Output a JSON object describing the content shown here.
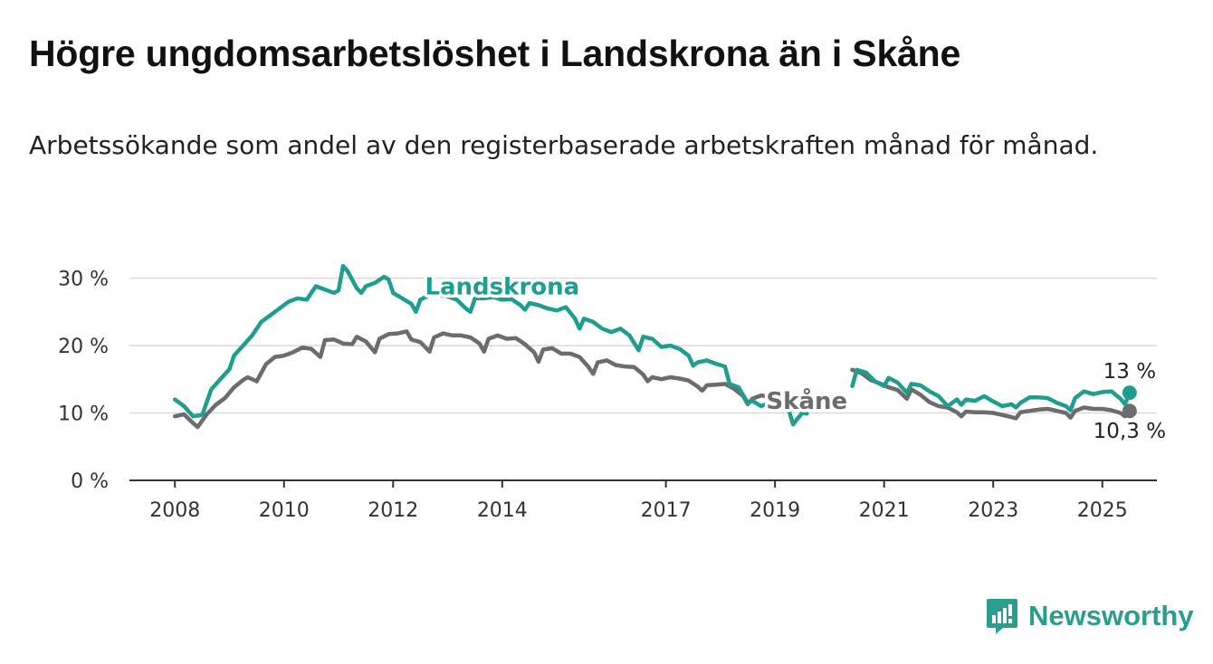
{
  "title": "Högre ungdomsarbetslöshet i Landskrona än i Skåne",
  "subtitle": "Arbetssökande som andel av den registerbaserade arbetskraften månad för månad.",
  "brand": {
    "name": "Newsworthy",
    "icon": "bar-chart-bubble-icon",
    "color": "#2a9d8f"
  },
  "chart_data": {
    "type": "line",
    "ylim": [
      0,
      31
    ],
    "xlim": [
      "2007-03",
      "2026-01"
    ],
    "y_ticks": [
      {
        "value": 0,
        "label": "0 %"
      },
      {
        "value": 10,
        "label": "10 %"
      },
      {
        "value": 20,
        "label": "20 %"
      },
      {
        "value": 30,
        "label": "30 %"
      }
    ],
    "x_ticks": [
      {
        "date": "2008-01",
        "label": "2008"
      },
      {
        "date": "2010-01",
        "label": "2010"
      },
      {
        "date": "2012-01",
        "label": "2012"
      },
      {
        "date": "2014-01",
        "label": "2014"
      },
      {
        "date": "2017-01",
        "label": "2017"
      },
      {
        "date": "2019-01",
        "label": "2019"
      },
      {
        "date": "2021-01",
        "label": "2021"
      },
      {
        "date": "2023-01",
        "label": "2023"
      },
      {
        "date": "2025-01",
        "label": "2025"
      }
    ],
    "grid": true,
    "series": [
      {
        "name": "Skåne",
        "color": "#6b6b70",
        "end_label": "10,3 %",
        "points": [
          [
            "2008-01",
            9.5
          ],
          [
            "2008-03",
            9.8
          ],
          [
            "2008-05",
            8.5
          ],
          [
            "2008-06",
            7.9
          ],
          [
            "2008-08",
            9.8
          ],
          [
            "2008-10",
            11.2
          ],
          [
            "2008-12",
            12.2
          ],
          [
            "2009-02",
            13.8
          ],
          [
            "2009-04",
            14.9
          ],
          [
            "2009-05",
            15.3
          ],
          [
            "2009-07",
            14.7
          ],
          [
            "2009-09",
            17.2
          ],
          [
            "2009-11",
            18.3
          ],
          [
            "2010-01",
            18.5
          ],
          [
            "2010-03",
            19
          ],
          [
            "2010-05",
            19.7
          ],
          [
            "2010-07",
            19.5
          ],
          [
            "2010-09",
            18.3
          ],
          [
            "2010-10",
            20.8
          ],
          [
            "2010-12",
            20.9
          ],
          [
            "2011-02",
            20.3
          ],
          [
            "2011-04",
            20.2
          ],
          [
            "2011-05",
            21.3
          ],
          [
            "2011-07",
            20.6
          ],
          [
            "2011-09",
            19
          ],
          [
            "2011-10",
            21
          ],
          [
            "2011-12",
            21.7
          ],
          [
            "2012-02",
            21.8
          ],
          [
            "2012-04",
            22.1
          ],
          [
            "2012-05",
            20.9
          ],
          [
            "2012-07",
            20.5
          ],
          [
            "2012-09",
            19.1
          ],
          [
            "2012-10",
            21.2
          ],
          [
            "2012-12",
            21.8
          ],
          [
            "2013-02",
            21.5
          ],
          [
            "2013-04",
            21.5
          ],
          [
            "2013-06",
            21.2
          ],
          [
            "2013-08",
            20.3
          ],
          [
            "2013-09",
            19.1
          ],
          [
            "2013-10",
            21
          ],
          [
            "2013-12",
            21.5
          ],
          [
            "2014-02",
            21
          ],
          [
            "2014-04",
            21.1
          ],
          [
            "2014-06",
            20.2
          ],
          [
            "2014-08",
            19
          ],
          [
            "2014-09",
            17.6
          ],
          [
            "2014-10",
            19.4
          ],
          [
            "2014-12",
            19.6
          ],
          [
            "2015-02",
            18.8
          ],
          [
            "2015-04",
            18.8
          ],
          [
            "2015-06",
            18.3
          ],
          [
            "2015-08",
            16.8
          ],
          [
            "2015-09",
            15.8
          ],
          [
            "2015-10",
            17.5
          ],
          [
            "2015-12",
            17.8
          ],
          [
            "2016-02",
            17.1
          ],
          [
            "2016-04",
            16.9
          ],
          [
            "2016-06",
            16.8
          ],
          [
            "2016-08",
            15.7
          ],
          [
            "2016-09",
            14.7
          ],
          [
            "2016-10",
            15.3
          ],
          [
            "2016-12",
            15
          ],
          [
            "2017-02",
            15.3
          ],
          [
            "2017-04",
            15.1
          ],
          [
            "2017-06",
            14.8
          ],
          [
            "2017-08",
            13.9
          ],
          [
            "2017-09",
            13.3
          ],
          [
            "2017-10",
            14.1
          ],
          [
            "2017-12",
            14.2
          ],
          [
            "2018-02",
            14.3
          ],
          [
            "2018-04",
            13.6
          ],
          [
            "2018-06",
            12.5
          ],
          [
            "2018-07",
            11.3
          ],
          [
            "2018-08",
            12.1
          ],
          [
            "2018-10",
            12.6
          ],
          [
            "2018-12",
            12.3
          ],
          [
            "2020-06",
            16.4
          ],
          [
            "2020-08",
            15.9
          ],
          [
            "2020-10",
            14.9
          ],
          [
            "2020-12",
            14.4
          ],
          [
            "2021-02",
            13.8
          ],
          [
            "2021-04",
            13.4
          ],
          [
            "2021-06",
            12.1
          ],
          [
            "2021-07",
            13.5
          ],
          [
            "2021-09",
            12.7
          ],
          [
            "2021-11",
            11.6
          ],
          [
            "2022-01",
            11
          ],
          [
            "2022-03",
            10.8
          ],
          [
            "2022-05",
            10.1
          ],
          [
            "2022-06",
            9.5
          ],
          [
            "2022-07",
            10.2
          ],
          [
            "2022-09",
            10.1
          ],
          [
            "2022-11",
            10.1
          ],
          [
            "2023-01",
            10
          ],
          [
            "2023-03",
            9.7
          ],
          [
            "2023-05",
            9.4
          ],
          [
            "2023-06",
            9.2
          ],
          [
            "2023-07",
            10.1
          ],
          [
            "2023-09",
            10.3
          ],
          [
            "2023-11",
            10.5
          ],
          [
            "2024-01",
            10.6
          ],
          [
            "2024-03",
            10.3
          ],
          [
            "2024-05",
            10
          ],
          [
            "2024-06",
            9.3
          ],
          [
            "2024-07",
            10.3
          ],
          [
            "2024-09",
            10.8
          ],
          [
            "2024-11",
            10.6
          ],
          [
            "2025-01",
            10.6
          ],
          [
            "2025-03",
            10.4
          ],
          [
            "2025-05",
            10
          ],
          [
            "2025-06",
            9.5
          ],
          [
            "2025-07",
            10.3
          ]
        ]
      },
      {
        "name": "Landskrona",
        "color": "#1f9e8f",
        "end_label": "13 %",
        "points": [
          [
            "2008-01",
            12
          ],
          [
            "2008-03",
            11
          ],
          [
            "2008-05",
            9.5
          ],
          [
            "2008-07",
            9.7
          ],
          [
            "2008-09",
            13.5
          ],
          [
            "2008-11",
            15
          ],
          [
            "2009-01",
            16.5
          ],
          [
            "2009-02",
            18.5
          ],
          [
            "2009-04",
            20
          ],
          [
            "2009-06",
            21.5
          ],
          [
            "2009-08",
            23.5
          ],
          [
            "2009-10",
            24.5
          ],
          [
            "2009-12",
            25.5
          ],
          [
            "2010-02",
            26.5
          ],
          [
            "2010-04",
            27
          ],
          [
            "2010-06",
            26.8
          ],
          [
            "2010-08",
            28.8
          ],
          [
            "2010-10",
            28.3
          ],
          [
            "2010-12",
            27.8
          ],
          [
            "2011-01",
            28.2
          ],
          [
            "2011-02",
            31.8
          ],
          [
            "2011-03",
            31
          ],
          [
            "2011-05",
            28.5
          ],
          [
            "2011-06",
            27.8
          ],
          [
            "2011-07",
            28.8
          ],
          [
            "2011-09",
            29.3
          ],
          [
            "2011-11",
            30.2
          ],
          [
            "2011-12",
            29.8
          ],
          [
            "2012-01",
            27.8
          ],
          [
            "2012-03",
            27
          ],
          [
            "2012-05",
            26.2
          ],
          [
            "2012-06",
            25
          ],
          [
            "2012-07",
            26.8
          ],
          [
            "2012-09",
            27.5
          ],
          [
            "2012-11",
            27.5
          ],
          [
            "2013-01",
            27.3
          ],
          [
            "2013-03",
            26.8
          ],
          [
            "2013-05",
            25.5
          ],
          [
            "2013-06",
            25
          ],
          [
            "2013-07",
            27
          ],
          [
            "2013-09",
            27
          ],
          [
            "2013-11",
            27.2
          ],
          [
            "2014-01",
            26.8
          ],
          [
            "2014-03",
            26.9
          ],
          [
            "2014-05",
            26
          ],
          [
            "2014-06",
            25.3
          ],
          [
            "2014-07",
            26.3
          ],
          [
            "2014-09",
            26
          ],
          [
            "2014-11",
            25.5
          ],
          [
            "2015-01",
            25.2
          ],
          [
            "2015-03",
            25.7
          ],
          [
            "2015-05",
            24
          ],
          [
            "2015-06",
            22.5
          ],
          [
            "2015-07",
            24
          ],
          [
            "2015-09",
            23.5
          ],
          [
            "2015-11",
            22.5
          ],
          [
            "2016-01",
            22
          ],
          [
            "2016-03",
            22.5
          ],
          [
            "2016-05",
            21.5
          ],
          [
            "2016-07",
            19.3
          ],
          [
            "2016-08",
            21.3
          ],
          [
            "2016-10",
            21
          ],
          [
            "2016-12",
            19.8
          ],
          [
            "2017-02",
            20
          ],
          [
            "2017-04",
            19.5
          ],
          [
            "2017-06",
            18.5
          ],
          [
            "2017-07",
            17
          ],
          [
            "2017-08",
            17.5
          ],
          [
            "2017-10",
            17.8
          ],
          [
            "2017-12",
            17.3
          ],
          [
            "2018-02",
            16.9
          ],
          [
            "2018-03",
            14.3
          ],
          [
            "2018-05",
            13.8
          ],
          [
            "2018-07",
            11.5
          ],
          [
            "2018-08",
            11.8
          ],
          [
            "2018-10",
            11
          ],
          [
            "2018-12",
            11.6
          ],
          [
            "2019-04",
            10.5
          ],
          [
            "2019-05",
            8.3
          ],
          [
            "2019-06",
            9.2
          ],
          [
            "2019-07",
            10
          ],
          [
            "2019-08",
            9.9
          ],
          [
            "2020-06",
            14
          ],
          [
            "2020-07",
            16.4
          ],
          [
            "2020-09",
            16
          ],
          [
            "2020-11",
            14.7
          ],
          [
            "2021-01",
            14
          ],
          [
            "2021-02",
            15.2
          ],
          [
            "2021-04",
            14.5
          ],
          [
            "2021-06",
            13
          ],
          [
            "2021-07",
            14.3
          ],
          [
            "2021-09",
            14.1
          ],
          [
            "2021-11",
            13.2
          ],
          [
            "2022-01",
            12.5
          ],
          [
            "2022-03",
            11
          ],
          [
            "2022-05",
            12
          ],
          [
            "2022-06",
            11.2
          ],
          [
            "2022-07",
            12
          ],
          [
            "2022-09",
            11.8
          ],
          [
            "2022-11",
            12.5
          ],
          [
            "2023-01",
            11.7
          ],
          [
            "2023-03",
            11
          ],
          [
            "2023-05",
            11.3
          ],
          [
            "2023-06",
            10.8
          ],
          [
            "2023-07",
            11.5
          ],
          [
            "2023-09",
            12.3
          ],
          [
            "2023-11",
            12.3
          ],
          [
            "2024-01",
            12.2
          ],
          [
            "2024-03",
            11.5
          ],
          [
            "2024-05",
            11
          ],
          [
            "2024-06",
            10.4
          ],
          [
            "2024-07",
            12.2
          ],
          [
            "2024-09",
            13.2
          ],
          [
            "2024-11",
            12.8
          ],
          [
            "2025-01",
            13.1
          ],
          [
            "2025-03",
            13.2
          ],
          [
            "2025-05",
            12.1
          ],
          [
            "2025-06",
            11.3
          ],
          [
            "2025-07",
            13
          ]
        ]
      }
    ]
  }
}
